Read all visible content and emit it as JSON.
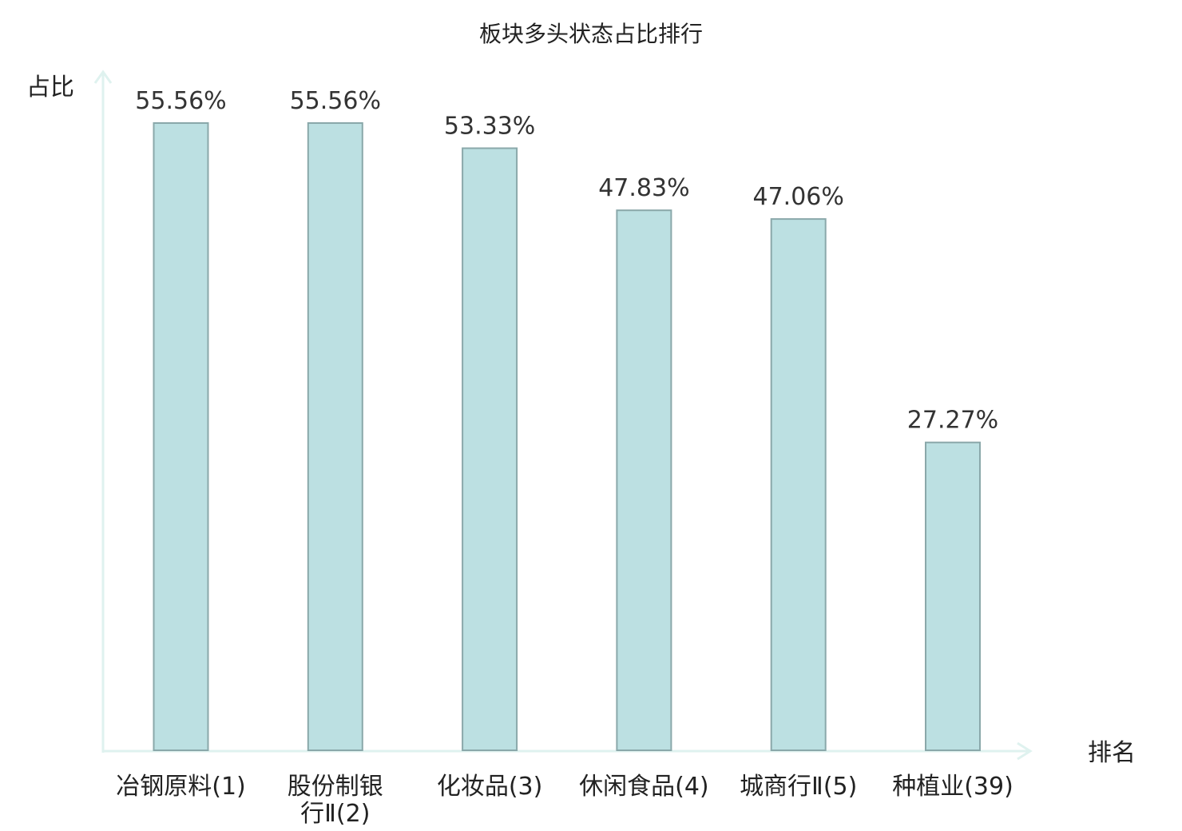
{
  "chart_data": {
    "type": "bar",
    "title": "板块多头状态占比排行",
    "ylabel": "占比",
    "xlabel": "排名",
    "categories": [
      "冶钢原料(1)",
      "股份制银行Ⅱ(2)",
      "化妆品(3)",
      "休闲食品(4)",
      "城商行Ⅱ(5)",
      "种植业(39)"
    ],
    "category_lines": [
      [
        "冶钢原料(1)"
      ],
      [
        "股份制银",
        "行Ⅱ(2)"
      ],
      [
        "化妆品(3)"
      ],
      [
        "休闲食品(4)"
      ],
      [
        "城商行Ⅱ(5)"
      ],
      [
        "种植业(39)"
      ]
    ],
    "values": [
      55.56,
      55.56,
      53.33,
      47.83,
      47.06,
      27.27
    ],
    "value_labels": [
      "55.56%",
      "55.56%",
      "53.33%",
      "47.83%",
      "47.06%",
      "27.27%"
    ],
    "highlight_index": 5,
    "ylim": [
      0,
      60
    ],
    "grid": false,
    "colors": {
      "bar_fill": "#bce0e2",
      "bar_stroke": "#8aa8aa",
      "axis": "#dff2ef",
      "highlight_label": "#e8141b",
      "text": "#222222"
    }
  }
}
